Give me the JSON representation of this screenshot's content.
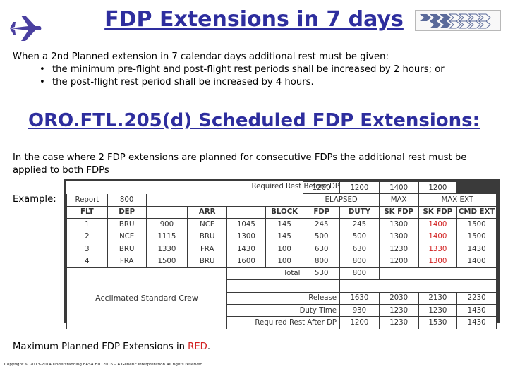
{
  "header": {
    "title": "FDP Extensions in 7 days",
    "plane_icon": "airplane-icon",
    "logo_icon": "chevron-arrows-logo"
  },
  "intro": {
    "text": "When a 2nd Planned extension in 7 calendar days additional rest must be given:",
    "bullets": [
      "the minimum pre-flight and post-flight rest periods shall be increased by 2 hours; or",
      "the post-flight rest period shall be increased by 4 hours."
    ]
  },
  "heading": "ORO.FTL.205(d) Scheduled FDP Extensions:",
  "paragraph": "In the case where 2 FDP extensions are planned for consecutive FDPs the additional rest must be applied to both FDPs",
  "example_label": "Example:",
  "table": {
    "required_before_label": "Required Rest Before DP",
    "required_before": [
      "1200",
      "1200",
      "1400",
      "1200"
    ],
    "report_label": "Report",
    "report_value": "800",
    "elapsed_label": "ELAPSED",
    "max_label": "MAX",
    "max_ext_label": "MAX EXT",
    "columns": [
      "FLT",
      "DEP",
      "",
      "ARR",
      "",
      "BLOCK",
      "FDP",
      "DUTY",
      "SK FDP",
      "SK FDP",
      "CMD EXT"
    ],
    "rows": [
      [
        "1",
        "BRU",
        "900",
        "NCE",
        "1045",
        "145",
        "245",
        "245",
        "1300",
        "1400",
        "1500"
      ],
      [
        "2",
        "NCE",
        "1115",
        "BRU",
        "1300",
        "145",
        "500",
        "500",
        "1300",
        "1400",
        "1500"
      ],
      [
        "3",
        "BRU",
        "1330",
        "FRA",
        "1430",
        "100",
        "630",
        "630",
        "1230",
        "1330",
        "1430"
      ],
      [
        "4",
        "FRA",
        "1500",
        "BRU",
        "1600",
        "100",
        "800",
        "800",
        "1200",
        "1300",
        "1400"
      ]
    ],
    "total_label": "Total",
    "totals": [
      "530",
      "800"
    ],
    "crew_caption": "Acclimated Standard Crew",
    "release_label": "Release",
    "release": [
      "1630",
      "2030",
      "2130",
      "2230"
    ],
    "duty_time_label": "Duty Time",
    "duty_time": [
      "930",
      "1230",
      "1230",
      "1430"
    ],
    "required_after_label": "Required Rest After DP",
    "required_after": [
      "1200",
      "1230",
      "1530",
      "1430"
    ]
  },
  "footer_note": {
    "prefix": "Maximum Planned FDP Extensions in ",
    "red_word": "RED",
    "suffix": "."
  },
  "copyright": "Copyright © 2013-2014 Understanding EASA FTL 2016 – A Generic Interpretation All rights reserved.",
  "colors": {
    "title": "#2e2e9e",
    "extension_red": "#d22020",
    "table_border": "#3a3a3a"
  }
}
